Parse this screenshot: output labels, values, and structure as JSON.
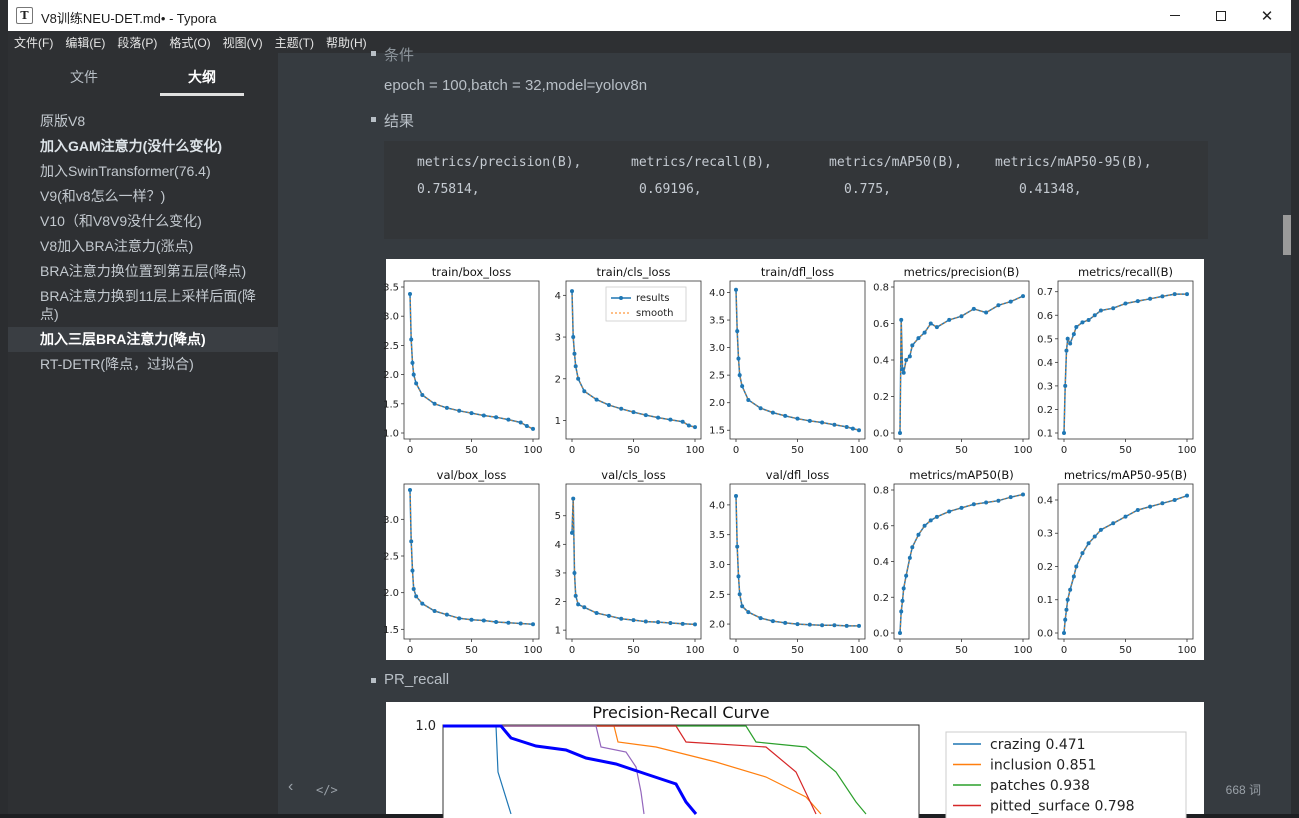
{
  "window": {
    "title": "V8训练NEU-DET.md• - Typora",
    "app_icon": "T"
  },
  "menubar": [
    "文件(F)",
    "编辑(E)",
    "段落(P)",
    "格式(O)",
    "视图(V)",
    "主题(T)",
    "帮助(H)"
  ],
  "sidebar": {
    "tabs": [
      "文件",
      "大纲"
    ],
    "active_tab": "大纲",
    "items": [
      {
        "label": "原版V8",
        "bold": false
      },
      {
        "label": "加入GAM注意力(没什么变化)",
        "bold": true
      },
      {
        "label": "加入SwinTransformer(76.4)",
        "bold": false
      },
      {
        "label": "V9(和v8怎么一样？)",
        "bold": false
      },
      {
        "label": "V10（和V8V9没什么变化)",
        "bold": false
      },
      {
        "label": "V8加入BRA注意力(涨点)",
        "bold": false
      },
      {
        "label": "BRA注意力换位置到第五层(降点)",
        "bold": false
      },
      {
        "label": "BRA注意力换到11层上采样后面(降点)",
        "bold": false
      },
      {
        "label": "加入三层BRA注意力(降点)",
        "bold": true,
        "active": true
      },
      {
        "label": "RT-DETR(降点，过拟合)",
        "bold": false
      }
    ]
  },
  "content": {
    "partial_heading": "条件",
    "params": "epoch = 100,batch = 32,model=yolov8n",
    "results_heading": "结果",
    "code": {
      "headers": [
        "metrics/precision(B),",
        "metrics/recall(B),",
        "metrics/mAP50(B),",
        "metrics/mAP50-95(B),"
      ],
      "values": [
        "0.75814,",
        "0.69196,",
        "0.775,",
        "0.41348,"
      ]
    },
    "pr_heading": "PR_recall",
    "word_count": "668 词"
  },
  "chart_data": [
    {
      "type": "line",
      "title": "train/box_loss",
      "ylim": [
        1.0,
        3.5
      ],
      "yticks": [
        "1.0",
        "1.5",
        "2.0",
        "2.5",
        "3.0",
        "3.5"
      ],
      "xticks": [
        "0",
        "50",
        "100"
      ],
      "series": [
        {
          "name": "results",
          "x": [
            0,
            1,
            2,
            3,
            5,
            10,
            20,
            30,
            40,
            50,
            60,
            70,
            80,
            90,
            95,
            100
          ],
          "y": [
            3.38,
            2.6,
            2.2,
            2.0,
            1.85,
            1.65,
            1.5,
            1.43,
            1.38,
            1.34,
            1.3,
            1.27,
            1.23,
            1.18,
            1.12,
            1.07
          ]
        }
      ]
    },
    {
      "type": "line",
      "title": "train/cls_loss",
      "ylim": [
        0.7,
        4.2
      ],
      "yticks": [
        "1",
        "2",
        "3",
        "4"
      ],
      "xticks": [
        "0",
        "50",
        "100"
      ],
      "legend": [
        "results",
        "smooth"
      ],
      "series": [
        {
          "name": "results",
          "x": [
            0,
            1,
            2,
            3,
            5,
            10,
            20,
            30,
            40,
            50,
            60,
            70,
            80,
            90,
            95,
            100
          ],
          "y": [
            4.1,
            3.0,
            2.6,
            2.3,
            2.0,
            1.7,
            1.5,
            1.37,
            1.28,
            1.2,
            1.13,
            1.07,
            1.02,
            0.97,
            0.88,
            0.84
          ]
        }
      ]
    },
    {
      "type": "line",
      "title": "train/dfl_loss",
      "ylim": [
        1.45,
        4.1
      ],
      "yticks": [
        "1.5",
        "2.0",
        "2.5",
        "3.0",
        "3.5",
        "4.0"
      ],
      "xticks": [
        "0",
        "50",
        "100"
      ],
      "series": [
        {
          "name": "results",
          "x": [
            0,
            1,
            2,
            3,
            5,
            10,
            20,
            30,
            40,
            50,
            60,
            70,
            80,
            90,
            95,
            100
          ],
          "y": [
            4.05,
            3.3,
            2.8,
            2.5,
            2.3,
            2.05,
            1.9,
            1.82,
            1.76,
            1.71,
            1.67,
            1.64,
            1.6,
            1.56,
            1.53,
            1.5
          ]
        }
      ]
    },
    {
      "type": "line",
      "title": "metrics/precision(B)",
      "ylim": [
        0.0,
        0.8
      ],
      "yticks": [
        "0.0",
        "0.2",
        "0.4",
        "0.6",
        "0.8"
      ],
      "xticks": [
        "0",
        "50",
        "100"
      ],
      "series": [
        {
          "name": "results",
          "x": [
            0,
            1,
            2,
            3,
            5,
            8,
            10,
            15,
            20,
            25,
            30,
            40,
            50,
            60,
            70,
            80,
            90,
            100
          ],
          "y": [
            0.0,
            0.62,
            0.35,
            0.33,
            0.4,
            0.42,
            0.48,
            0.52,
            0.55,
            0.6,
            0.58,
            0.62,
            0.64,
            0.68,
            0.66,
            0.7,
            0.72,
            0.75
          ]
        }
      ]
    },
    {
      "type": "line",
      "title": "metrics/recall(B)",
      "ylim": [
        0.1,
        0.72
      ],
      "yticks": [
        "0.1",
        "0.2",
        "0.3",
        "0.4",
        "0.5",
        "0.6",
        "0.7"
      ],
      "xticks": [
        "0",
        "50",
        "100"
      ],
      "series": [
        {
          "name": "results",
          "x": [
            0,
            1,
            2,
            3,
            5,
            8,
            10,
            15,
            20,
            25,
            30,
            40,
            50,
            60,
            70,
            80,
            90,
            100
          ],
          "y": [
            0.1,
            0.3,
            0.45,
            0.5,
            0.48,
            0.52,
            0.55,
            0.57,
            0.58,
            0.6,
            0.62,
            0.63,
            0.65,
            0.66,
            0.67,
            0.68,
            0.69,
            0.69
          ]
        }
      ]
    },
    {
      "type": "line",
      "title": "val/box_loss",
      "ylim": [
        1.45,
        3.4
      ],
      "yticks": [
        "1.5",
        "2.0",
        "2.5",
        "3.0"
      ],
      "xticks": [
        "0",
        "50",
        "100"
      ],
      "series": [
        {
          "name": "results",
          "x": [
            0,
            1,
            2,
            3,
            5,
            10,
            20,
            30,
            40,
            50,
            60,
            70,
            80,
            90,
            100
          ],
          "y": [
            3.4,
            2.7,
            2.3,
            2.05,
            1.95,
            1.85,
            1.75,
            1.7,
            1.65,
            1.63,
            1.62,
            1.6,
            1.59,
            1.58,
            1.57
          ]
        }
      ]
    },
    {
      "type": "line",
      "title": "val/cls_loss",
      "ylim": [
        0.9,
        5.9
      ],
      "yticks": [
        "1",
        "2",
        "3",
        "4",
        "5"
      ],
      "xticks": [
        "0",
        "50",
        "100"
      ],
      "series": [
        {
          "name": "results",
          "x": [
            0,
            1,
            2,
            3,
            5,
            10,
            20,
            30,
            40,
            50,
            60,
            70,
            80,
            90,
            100
          ],
          "y": [
            4.4,
            5.6,
            3.0,
            2.2,
            1.9,
            1.8,
            1.6,
            1.5,
            1.4,
            1.35,
            1.3,
            1.28,
            1.25,
            1.22,
            1.2
          ]
        }
      ]
    },
    {
      "type": "line",
      "title": "val/dfl_loss",
      "ylim": [
        1.85,
        4.25
      ],
      "yticks": [
        "2.0",
        "2.5",
        "3.0",
        "3.5",
        "4.0"
      ],
      "xticks": [
        "0",
        "50",
        "100"
      ],
      "series": [
        {
          "name": "results",
          "x": [
            0,
            1,
            2,
            3,
            5,
            10,
            20,
            30,
            40,
            50,
            60,
            70,
            80,
            90,
            100
          ],
          "y": [
            4.15,
            3.3,
            2.8,
            2.5,
            2.3,
            2.2,
            2.1,
            2.05,
            2.02,
            2.0,
            1.99,
            1.98,
            1.98,
            1.97,
            1.97
          ]
        }
      ]
    },
    {
      "type": "line",
      "title": "metrics/mAP50(B)",
      "ylim": [
        0.0,
        0.8
      ],
      "yticks": [
        "0.0",
        "0.2",
        "0.4",
        "0.6",
        "0.8"
      ],
      "xticks": [
        "0",
        "50",
        "100"
      ],
      "series": [
        {
          "name": "results",
          "x": [
            0,
            1,
            2,
            3,
            5,
            8,
            10,
            15,
            20,
            25,
            30,
            40,
            50,
            60,
            70,
            80,
            90,
            100
          ],
          "y": [
            0.0,
            0.12,
            0.18,
            0.25,
            0.32,
            0.42,
            0.48,
            0.55,
            0.6,
            0.63,
            0.65,
            0.68,
            0.7,
            0.72,
            0.73,
            0.74,
            0.76,
            0.775
          ]
        }
      ]
    },
    {
      "type": "line",
      "title": "metrics/mAP50-95(B)",
      "ylim": [
        0.0,
        0.43
      ],
      "yticks": [
        "0.0",
        "0.1",
        "0.2",
        "0.3",
        "0.4"
      ],
      "xticks": [
        "0",
        "50",
        "100"
      ],
      "series": [
        {
          "name": "results",
          "x": [
            0,
            1,
            2,
            3,
            5,
            8,
            10,
            15,
            20,
            25,
            30,
            40,
            50,
            60,
            70,
            80,
            90,
            100
          ],
          "y": [
            0.0,
            0.04,
            0.07,
            0.1,
            0.13,
            0.17,
            0.2,
            0.24,
            0.27,
            0.29,
            0.31,
            0.33,
            0.35,
            0.37,
            0.38,
            0.39,
            0.4,
            0.413
          ]
        }
      ]
    },
    {
      "type": "line",
      "title": "Precision-Recall Curve",
      "ytick_top": "1.0",
      "legend": [
        {
          "label": "crazing 0.471",
          "color": "#1f77b4"
        },
        {
          "label": "inclusion 0.851",
          "color": "#ff7f0e"
        },
        {
          "label": "patches 0.938",
          "color": "#2ca02c"
        },
        {
          "label": "pitted_surface 0.798",
          "color": "#d62728"
        }
      ]
    }
  ]
}
